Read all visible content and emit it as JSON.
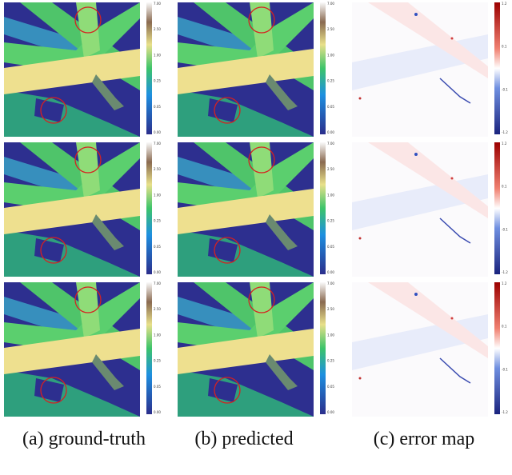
{
  "figure": {
    "columns": [
      {
        "caption": "(a) ground-truth",
        "colorbar_ticks": [
          "7.00",
          "2.50",
          "1.00",
          "0.25",
          "0.05",
          "0.00"
        ]
      },
      {
        "caption": "(b) predicted",
        "colorbar_ticks": [
          "7.00",
          "2.50",
          "1.00",
          "0.25",
          "0.05",
          "0.00"
        ]
      },
      {
        "caption": "(c) error map",
        "colorbar_ticks": [
          "1.2",
          "0.1",
          "-0.1",
          "-1.2"
        ]
      }
    ]
  }
}
